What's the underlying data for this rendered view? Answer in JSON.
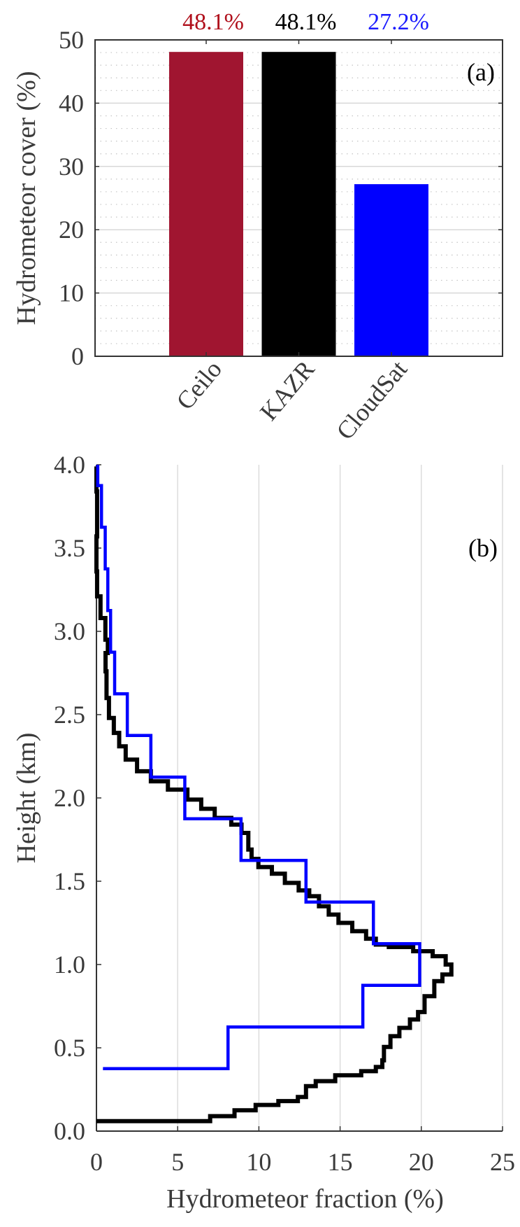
{
  "chart_data": [
    {
      "type": "bar",
      "panel_label": "(a)",
      "categories": [
        "Ceilo",
        "KAZR",
        "CloudSat"
      ],
      "values": [
        48.1,
        48.1,
        27.2
      ],
      "value_labels": [
        "48.1%",
        "48.1%",
        "27.2%"
      ],
      "colors": [
        "#a01530",
        "#000000",
        "#0000ff"
      ],
      "label_colors": [
        "#b0101c",
        "#000000",
        "#1a1aff"
      ],
      "xlabel": "",
      "ylabel": "Hydrometeor cover (%)",
      "ylim": [
        0,
        50
      ],
      "yticks": [
        "0",
        "10",
        "20",
        "30",
        "40",
        "50"
      ],
      "grid": "major solid every 10, minor dotted every 2",
      "legend": "none"
    },
    {
      "type": "line",
      "panel_label": "(b)",
      "xlabel": "Hydrometeor fraction (%)",
      "ylabel": "Height (km)",
      "xlim": [
        0,
        25
      ],
      "ylim": [
        0,
        4
      ],
      "xticks": [
        "0",
        "5",
        "10",
        "15",
        "20",
        "25"
      ],
      "yticks": [
        "0.0",
        "0.5",
        "1.0",
        "1.5",
        "2.0",
        "2.5",
        "3.0",
        "3.5",
        "4.0"
      ],
      "grid": "vertical only",
      "legend": "none",
      "series": [
        {
          "color": "#000000",
          "style": "stairs",
          "points": [
            [
              0,
              0.06
            ],
            [
              7.0,
              0.06
            ],
            [
              7.0,
              0.09
            ],
            [
              8.5,
              0.125
            ],
            [
              9.8,
              0.157
            ],
            [
              11.2,
              0.18
            ],
            [
              12.4,
              0.205
            ],
            [
              12.9,
              0.27
            ],
            [
              13.5,
              0.3
            ],
            [
              14.7,
              0.335
            ],
            [
              16.3,
              0.36
            ],
            [
              17.2,
              0.385
            ],
            [
              17.6,
              0.425
            ],
            [
              17.7,
              0.505
            ],
            [
              18.1,
              0.57
            ],
            [
              18.65,
              0.62
            ],
            [
              19.3,
              0.67
            ],
            [
              19.8,
              0.715
            ],
            [
              20.2,
              0.81
            ],
            [
              20.8,
              0.9
            ],
            [
              21.3,
              0.94
            ],
            [
              21.85,
              1.0
            ],
            [
              21.5,
              1.05
            ],
            [
              20.7,
              1.08
            ],
            [
              19.5,
              1.105
            ],
            [
              18.0,
              1.12
            ],
            [
              17.2,
              1.155
            ],
            [
              16.6,
              1.2
            ],
            [
              15.75,
              1.25
            ],
            [
              14.9,
              1.3
            ],
            [
              14.3,
              1.35
            ],
            [
              13.7,
              1.41
            ],
            [
              13.1,
              1.445
            ],
            [
              12.45,
              1.49
            ],
            [
              11.6,
              1.545
            ],
            [
              10.8,
              1.585
            ],
            [
              9.97,
              1.634
            ],
            [
              9.55,
              1.69
            ],
            [
              9.35,
              1.79
            ],
            [
              8.93,
              1.84
            ],
            [
              8.3,
              1.88
            ],
            [
              7.28,
              1.935
            ],
            [
              6.45,
              1.99
            ],
            [
              5.6,
              2.05
            ],
            [
              4.4,
              2.1
            ],
            [
              3.35,
              2.16
            ],
            [
              2.5,
              2.23
            ],
            [
              1.8,
              2.31
            ],
            [
              1.4,
              2.39
            ],
            [
              1.07,
              2.48
            ],
            [
              0.77,
              2.6
            ],
            [
              0.62,
              2.76
            ],
            [
              0.56,
              2.87
            ],
            [
              0.7,
              2.95
            ],
            [
              0.55,
              3.08
            ],
            [
              0.25,
              3.21
            ],
            [
              0.04,
              3.36
            ],
            [
              0,
              3.57
            ],
            [
              0.04,
              3.84
            ],
            [
              0,
              3.99
            ]
          ]
        },
        {
          "color": "#0000ff",
          "style": "stairs",
          "bin_edges_km": [
            0.375,
            0.625,
            0.875,
            1.125,
            1.375,
            1.625,
            1.875,
            2.125,
            2.375,
            2.625,
            2.875,
            3.125,
            3.375,
            3.625,
            3.875,
            4.0
          ],
          "start_value": 0.4,
          "values": [
            8.1,
            16.4,
            19.9,
            17.05,
            12.9,
            8.9,
            5.44,
            3.35,
            1.9,
            1.12,
            0.87,
            0.7,
            0.54,
            0.31,
            0.08
          ]
        }
      ]
    }
  ]
}
